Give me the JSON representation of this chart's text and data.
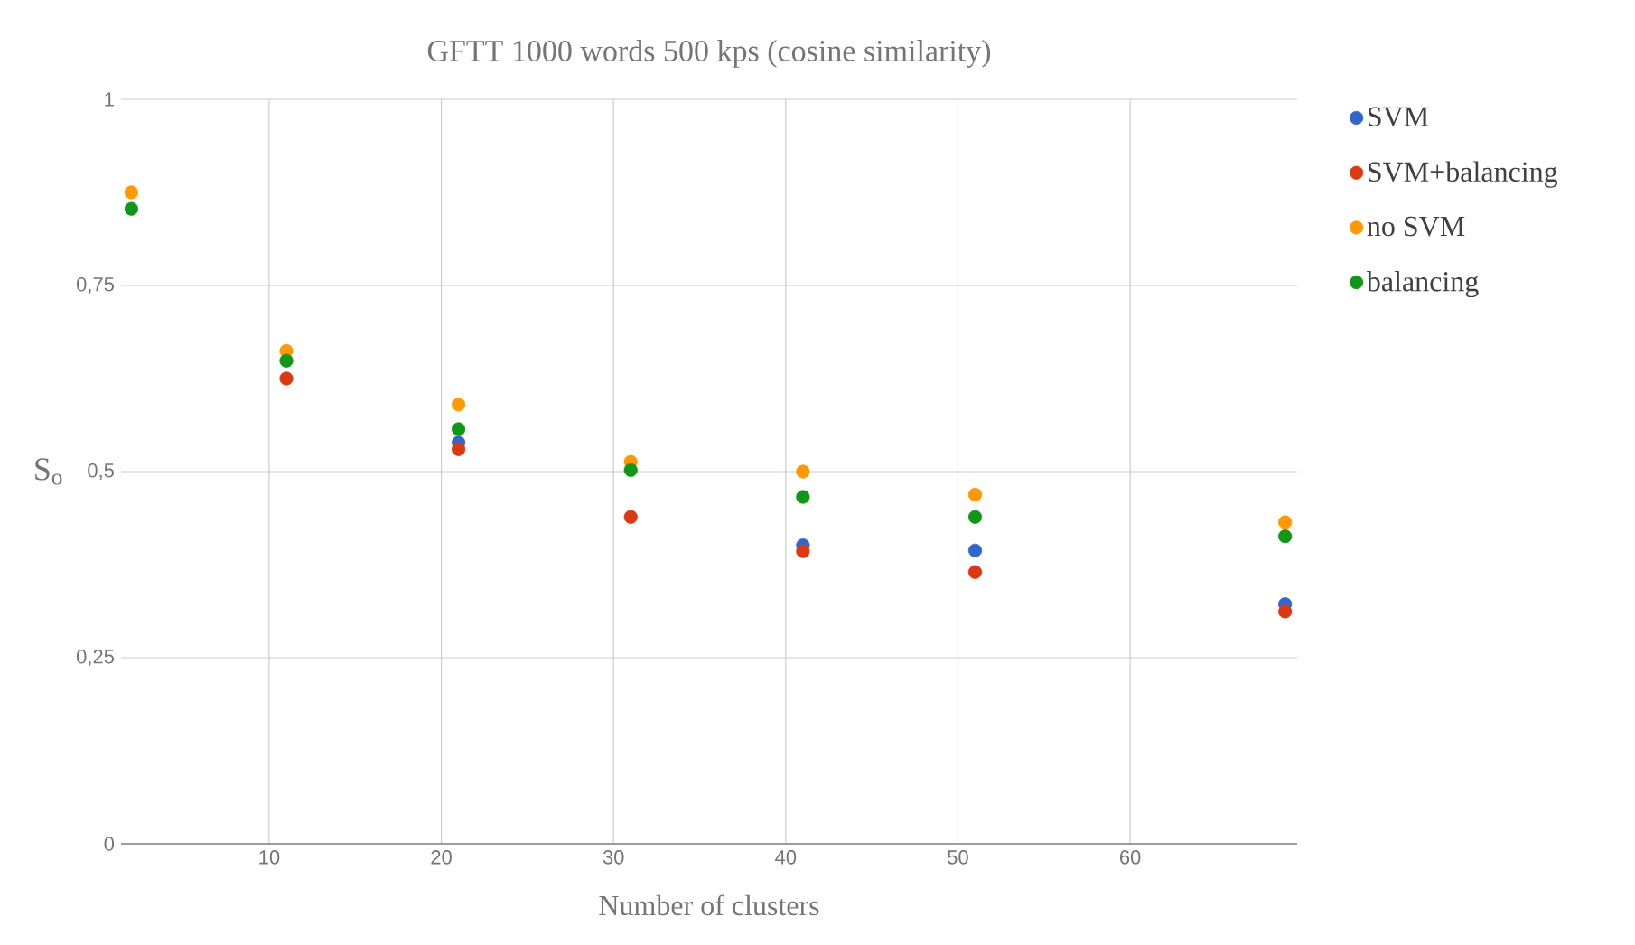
{
  "chart_data": {
    "type": "scatter",
    "title": "GFTT 1000 words 500 kps (cosine similarity)",
    "xlabel": "Number of clusters",
    "ylabel": "S$_{o}$",
    "x": [
      2,
      11,
      21,
      31,
      41,
      51,
      69
    ],
    "xlim": [
      1.4,
      69.7
    ],
    "xticks": [
      10,
      20,
      30,
      40,
      50,
      60
    ],
    "ylim": [
      0,
      1
    ],
    "yticks": [
      0,
      {
        "value": 0.25,
        "label": "0,25"
      },
      {
        "value": 0.5,
        "label": "0,5"
      },
      {
        "value": 0.75,
        "label": "0,75"
      },
      1
    ],
    "grid": true,
    "legend": "right",
    "marker": "circle",
    "series": [
      {
        "name": "SVM",
        "color": "#3366cc",
        "values": [
          null,
          null,
          0.539,
          null,
          0.401,
          0.394,
          0.322
        ]
      },
      {
        "name": "SVM+balancing",
        "color": "#dc3912",
        "values": [
          null,
          0.625,
          0.53,
          0.439,
          0.393,
          0.365,
          0.312
        ]
      },
      {
        "name": "no SVM",
        "color": "#ff9900",
        "values": [
          0.875,
          0.662,
          0.59,
          0.513,
          0.5,
          0.469,
          0.432
        ]
      },
      {
        "name": "balancing",
        "color": "#109618",
        "values": [
          0.853,
          0.649,
          0.557,
          0.502,
          0.466,
          0.439,
          0.413
        ]
      }
    ]
  }
}
